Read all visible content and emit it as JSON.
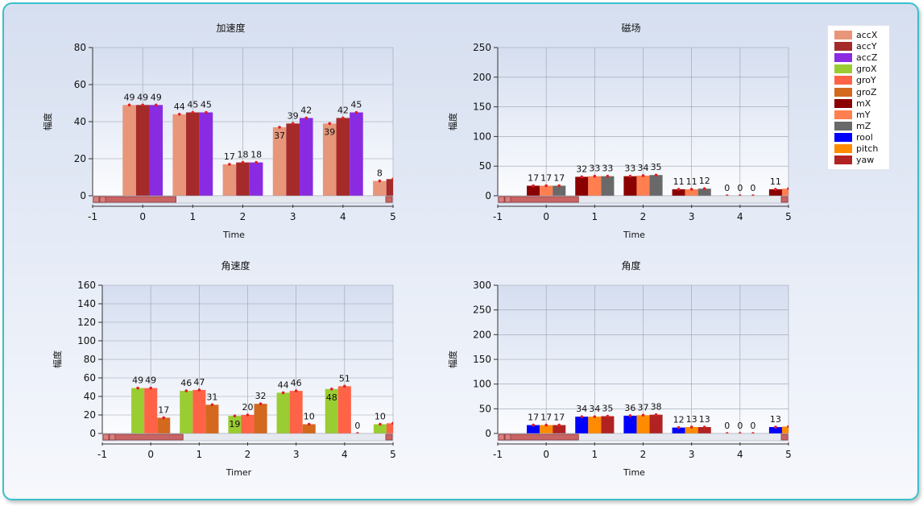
{
  "legend": [
    {
      "name": "accX",
      "color": "#e8967a"
    },
    {
      "name": "accY",
      "color": "#a52a2a"
    },
    {
      "name": "accZ",
      "color": "#8a2be2"
    },
    {
      "name": "groX",
      "color": "#9acd32"
    },
    {
      "name": "groY",
      "color": "#ff6347"
    },
    {
      "name": "groZ",
      "color": "#d2691e"
    },
    {
      "name": "mX",
      "color": "#8b0000"
    },
    {
      "name": "mY",
      "color": "#ff7f50"
    },
    {
      "name": "mZ",
      "color": "#696969"
    },
    {
      "name": "rool",
      "color": "#0000ff"
    },
    {
      "name": "pitch",
      "color": "#ff8c00"
    },
    {
      "name": "yaw",
      "color": "#b22222"
    }
  ],
  "chart_data": [
    {
      "type": "bar",
      "title": "加速度",
      "xlabel": "Time",
      "ylabel": "幅度",
      "xlim": [
        -1,
        5
      ],
      "ylim": [
        0,
        80
      ],
      "yticks": [
        0,
        20,
        40,
        60,
        80
      ],
      "xticks": [
        "-1",
        "0",
        "1",
        "2",
        "3",
        "4",
        "5"
      ],
      "categories": [
        0,
        1,
        2,
        3,
        4,
        5
      ],
      "series": [
        {
          "name": "accX",
          "color": "#e8967a",
          "values": [
            49,
            44,
            17,
            37,
            39,
            8
          ]
        },
        {
          "name": "accY",
          "color": "#a52a2a",
          "values": [
            49,
            45,
            18,
            39,
            42,
            9
          ]
        },
        {
          "name": "accZ",
          "color": "#8a2be2",
          "values": [
            49,
            45,
            18,
            42,
            45,
            null
          ]
        }
      ],
      "labels": [
        [
          "49",
          "44",
          "17",
          "37",
          "39",
          "8"
        ],
        [
          "49",
          "45",
          "18",
          "39",
          "42",
          ""
        ],
        [
          "49",
          "45",
          "18",
          "42",
          "45",
          ""
        ]
      ]
    },
    {
      "type": "bar",
      "title": "磁场",
      "xlabel": "Time",
      "ylabel": "幅度",
      "xlim": [
        -1,
        5
      ],
      "ylim": [
        0,
        250
      ],
      "yticks": [
        0,
        50,
        100,
        150,
        200,
        250
      ],
      "xticks": [
        "-1",
        "0",
        "1",
        "2",
        "3",
        "4",
        "5"
      ],
      "categories": [
        0,
        1,
        2,
        3,
        4,
        5
      ],
      "series": [
        {
          "name": "mX",
          "color": "#8b0000",
          "values": [
            17,
            32,
            33,
            11,
            0,
            11
          ]
        },
        {
          "name": "mY",
          "color": "#ff7f50",
          "values": [
            17,
            33,
            34,
            11,
            0,
            12
          ]
        },
        {
          "name": "mZ",
          "color": "#696969",
          "values": [
            17,
            33,
            35,
            12,
            0,
            null
          ]
        }
      ],
      "labels": [
        [
          "17",
          "32",
          "33",
          "11",
          "0",
          "11"
        ],
        [
          "17",
          "33",
          "34",
          "11",
          "0",
          ""
        ],
        [
          "17",
          "33",
          "35",
          "12",
          "0",
          ""
        ]
      ]
    },
    {
      "type": "bar",
      "title": "角速度",
      "xlabel": "Timer",
      "ylabel": "幅度",
      "xlim": [
        -1,
        5
      ],
      "ylim": [
        0,
        160
      ],
      "yticks": [
        0,
        20,
        40,
        60,
        80,
        100,
        120,
        140,
        160
      ],
      "xticks": [
        "-1",
        "0",
        "1",
        "2",
        "3",
        "4",
        "5"
      ],
      "categories": [
        0,
        1,
        2,
        3,
        4,
        5
      ],
      "series": [
        {
          "name": "groX",
          "color": "#9acd32",
          "values": [
            49,
            46,
            19,
            44,
            48,
            10
          ]
        },
        {
          "name": "groY",
          "color": "#ff6347",
          "values": [
            49,
            47,
            20,
            46,
            51,
            11
          ]
        },
        {
          "name": "groZ",
          "color": "#d2691e",
          "values": [
            17,
            31,
            32,
            10,
            0,
            null
          ]
        }
      ],
      "labels": [
        [
          "49",
          "46",
          "19",
          "44",
          "48",
          "10"
        ],
        [
          "49",
          "47",
          "20",
          "46",
          "51",
          ""
        ],
        [
          "17",
          "31",
          "32",
          "10",
          "0",
          ""
        ]
      ]
    },
    {
      "type": "bar",
      "title": "角度",
      "xlabel": "Time",
      "ylabel": "幅度",
      "xlim": [
        -1,
        5
      ],
      "ylim": [
        0,
        300
      ],
      "yticks": [
        0,
        50,
        100,
        150,
        200,
        250,
        300
      ],
      "xticks": [
        "-1",
        "0",
        "1",
        "2",
        "3",
        "4",
        "5"
      ],
      "categories": [
        0,
        1,
        2,
        3,
        4,
        5
      ],
      "series": [
        {
          "name": "rool",
          "color": "#0000ff",
          "values": [
            17,
            34,
            36,
            12,
            0,
            13
          ]
        },
        {
          "name": "pitch",
          "color": "#ff8c00",
          "values": [
            17,
            34,
            37,
            13,
            0,
            14
          ]
        },
        {
          "name": "yaw",
          "color": "#b22222",
          "values": [
            17,
            35,
            38,
            13,
            0,
            null
          ]
        }
      ],
      "labels": [
        [
          "17",
          "34",
          "36",
          "12",
          "0",
          "13"
        ],
        [
          "17",
          "34",
          "37",
          "13",
          "0",
          ""
        ],
        [
          "17",
          "35",
          "38",
          "13",
          "0",
          ""
        ]
      ]
    }
  ]
}
